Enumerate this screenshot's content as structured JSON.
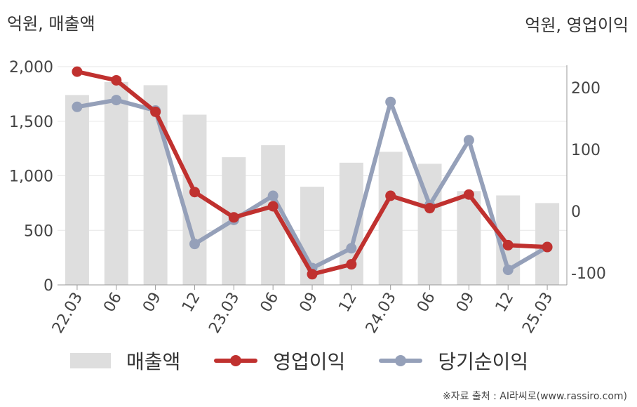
{
  "chart_data": {
    "type": "bar+line",
    "categories": [
      "22.03",
      "06",
      "09",
      "12",
      "23.03",
      "06",
      "09",
      "12",
      "24.03",
      "06",
      "09",
      "12",
      "25.03"
    ],
    "left_unit": "억원, 매출액",
    "right_unit": "억원, 영업이익",
    "left_axis": {
      "ylim": [
        0,
        2000
      ],
      "ticks": [
        0,
        500,
        1000,
        1500,
        2000
      ],
      "tick_labels": [
        "0",
        "500",
        "1,000",
        "1,500",
        "2,000"
      ]
    },
    "right_axis": {
      "ylim": [
        -120,
        240
      ],
      "ticks": [
        -100,
        0,
        100,
        200
      ],
      "tick_labels": [
        "-100",
        "0",
        "100",
        "200"
      ]
    },
    "grid": true,
    "legend_position": "bottom",
    "series": [
      {
        "name": "매출액",
        "type": "bar",
        "axis": "left",
        "color": "#dedede",
        "values": [
          1740,
          1860,
          1830,
          1560,
          1170,
          1280,
          900,
          1120,
          1220,
          1110,
          860,
          820,
          750
        ]
      },
      {
        "name": "영업이익",
        "type": "line",
        "axis": "right",
        "color": "#c0312f",
        "values": [
          226,
          212,
          161,
          31,
          -10,
          8,
          -102,
          -86,
          25,
          5,
          27,
          -55,
          -58
        ]
      },
      {
        "name": "당기순이익",
        "type": "line",
        "axis": "right",
        "color": "#95a0b9",
        "values": [
          169,
          180,
          163,
          -53,
          -14,
          25,
          -92,
          -60,
          177,
          10,
          115,
          -95,
          -58
        ]
      }
    ]
  },
  "source_text": "※자료 출처 : AI라씨로(www.rassiro.com)"
}
